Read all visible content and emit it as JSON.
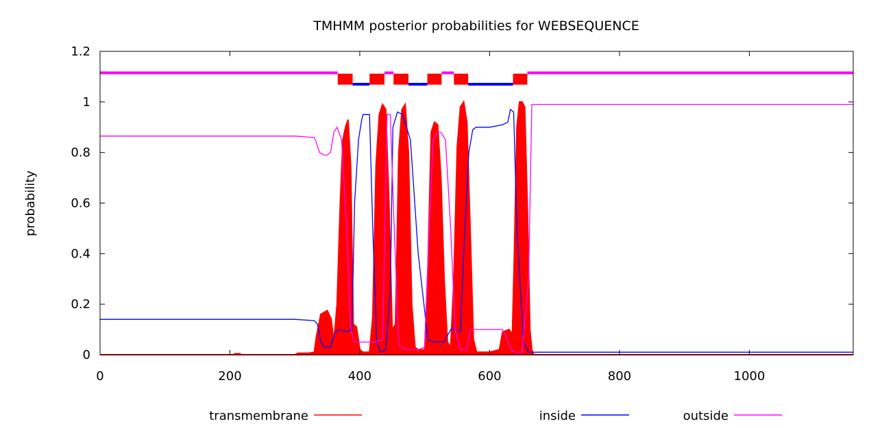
{
  "chart_data": {
    "type": "line",
    "title": "TMHMM posterior probabilities for WEBSEQUENCE",
    "xlabel": "",
    "ylabel": "probability",
    "xlim": [
      0,
      1160
    ],
    "ylim": [
      0,
      1.2
    ],
    "x_ticks": [
      0,
      200,
      400,
      600,
      800,
      1000
    ],
    "x_tick_labels": [
      "0",
      "200",
      "400",
      "600",
      "800",
      "1000"
    ],
    "y_ticks": [
      0,
      0.2,
      0.4,
      0.6,
      0.8,
      1,
      1.2
    ],
    "y_tick_labels": [
      "0",
      "0.2",
      "0.4",
      "0.6",
      "0.8",
      "1",
      "1.2"
    ],
    "grid": false,
    "legend_position": "bottom",
    "series": [
      {
        "name": "transmembrane",
        "color": "#ff0000",
        "style": "filled impulses",
        "x": [
          0,
          205,
          208,
          215,
          218,
          300,
          305,
          320,
          330,
          333,
          340,
          350,
          356,
          360,
          365,
          370,
          374,
          378,
          382,
          386,
          390,
          395,
          400,
          405,
          415,
          420,
          425,
          430,
          435,
          440,
          445,
          450,
          455,
          460,
          465,
          470,
          475,
          480,
          485,
          490,
          500,
          505,
          510,
          515,
          520,
          525,
          530,
          535,
          540,
          545,
          550,
          555,
          560,
          565,
          570,
          575,
          580,
          600,
          615,
          620,
          630,
          635,
          638,
          642,
          646,
          650,
          654,
          658,
          662,
          665,
          668,
          1160
        ],
        "y": [
          0,
          0,
          0.004,
          0.004,
          0,
          0,
          0.006,
          0.006,
          0.01,
          0.07,
          0.16,
          0.175,
          0.14,
          0.05,
          0.2,
          0.6,
          0.85,
          0.9,
          0.93,
          0.75,
          0.12,
          0.11,
          0.02,
          0.01,
          0.01,
          0.15,
          0.75,
          0.95,
          0.99,
          0.97,
          0.6,
          0.1,
          0.12,
          0.8,
          0.97,
          0.99,
          0.8,
          0.2,
          0.03,
          0.02,
          0.02,
          0.35,
          0.88,
          0.92,
          0.91,
          0.7,
          0.3,
          0.05,
          0.03,
          0.3,
          0.82,
          0.98,
          1.0,
          0.92,
          0.5,
          0.06,
          0.01,
          0.01,
          0.02,
          0.09,
          0.1,
          0.08,
          0.4,
          0.9,
          1.0,
          1.0,
          0.98,
          0.6,
          0.1,
          0.02,
          0,
          0
        ]
      },
      {
        "name": "inside",
        "color": "#0000ff",
        "x": [
          0,
          300,
          330,
          335,
          340,
          345,
          355,
          362,
          370,
          380,
          388,
          392,
          398,
          403,
          405,
          415,
          420,
          426,
          432,
          440,
          447,
          451,
          458,
          466,
          478,
          490,
          505,
          515,
          530,
          540,
          548,
          555,
          560,
          568,
          574,
          579,
          585,
          600,
          620,
          628,
          632,
          637,
          642,
          652,
          660,
          665,
          670,
          1160
        ],
        "y": [
          0.14,
          0.14,
          0.135,
          0.12,
          0.05,
          0.03,
          0.03,
          0.09,
          0.1,
          0.09,
          0.1,
          0.6,
          0.85,
          0.93,
          0.95,
          0.95,
          0.5,
          0.05,
          0.01,
          0.02,
          0.25,
          0.9,
          0.96,
          0.95,
          0.85,
          0.4,
          0.06,
          0.05,
          0.05,
          0.1,
          0.1,
          0.09,
          0.4,
          0.8,
          0.89,
          0.9,
          0.9,
          0.9,
          0.91,
          0.92,
          0.97,
          0.96,
          0.5,
          0.05,
          0.01,
          0.01,
          0.01,
          0.01
        ]
      },
      {
        "name": "outside",
        "color": "#ff00ff",
        "x": [
          0,
          300,
          325,
          330,
          333,
          338,
          345,
          350,
          355,
          360,
          365,
          372,
          380,
          386,
          392,
          398,
          405,
          425,
          435,
          438,
          442,
          447,
          453,
          460,
          470,
          490,
          500,
          507,
          513,
          520,
          525,
          532,
          540,
          547,
          555,
          565,
          570,
          580,
          600,
          620,
          627,
          633,
          640,
          650,
          660,
          665,
          1160
        ],
        "y": [
          0.865,
          0.865,
          0.86,
          0.86,
          0.84,
          0.8,
          0.79,
          0.79,
          0.8,
          0.88,
          0.9,
          0.85,
          0.5,
          0.1,
          0.05,
          0.05,
          0.05,
          0.05,
          0.06,
          0.4,
          0.95,
          0.95,
          0.5,
          0.04,
          0.02,
          0.02,
          0.03,
          0.5,
          0.85,
          0.88,
          0.88,
          0.85,
          0.5,
          0.1,
          0.02,
          0.02,
          0.1,
          0.1,
          0.1,
          0.1,
          0.06,
          0.02,
          0.01,
          0.01,
          0.3,
          0.99,
          0.99
        ]
      }
    ],
    "topology": {
      "y_levels": {
        "transmembrane": 1.09,
        "inside": 1.07,
        "outside": 1.115
      },
      "segments": [
        {
          "state": "outside",
          "start": 0,
          "end": 366
        },
        {
          "state": "transmembrane",
          "start": 366,
          "end": 389
        },
        {
          "state": "inside",
          "start": 389,
          "end": 415
        },
        {
          "state": "transmembrane",
          "start": 415,
          "end": 438
        },
        {
          "state": "outside",
          "start": 438,
          "end": 452
        },
        {
          "state": "transmembrane",
          "start": 452,
          "end": 475
        },
        {
          "state": "inside",
          "start": 475,
          "end": 504
        },
        {
          "state": "transmembrane",
          "start": 504,
          "end": 526
        },
        {
          "state": "outside",
          "start": 526,
          "end": 545
        },
        {
          "state": "transmembrane",
          "start": 545,
          "end": 567
        },
        {
          "state": "inside",
          "start": 567,
          "end": 636
        },
        {
          "state": "transmembrane",
          "start": 636,
          "end": 658
        },
        {
          "state": "outside",
          "start": 658,
          "end": 1160
        }
      ]
    }
  }
}
